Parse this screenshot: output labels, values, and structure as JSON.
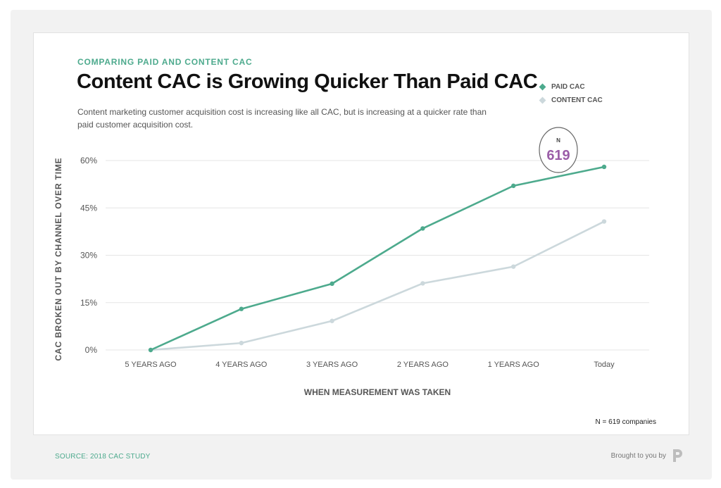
{
  "header": {
    "eyebrow": "COMPARING PAID AND CONTENT CAC",
    "title": "Content CAC is Growing Quicker Than Paid CAC",
    "subtitle": "Content marketing customer acquisition cost is increasing like all CAC, but is increasing at a quicker rate than paid customer acquisition cost."
  },
  "annotation": {
    "label": "N",
    "value": "619"
  },
  "note": "N = 619 companies",
  "footer": {
    "source": "SOURCE: 2018 CAC STUDY",
    "credit": "Brought to you by",
    "logo_icon": "brand-logo-icon"
  },
  "colors": {
    "paid": "#4daa8d",
    "content": "#ccd8dc",
    "annotation": "#9b5ea8",
    "grid": "#e6e6e6"
  },
  "chart_data": {
    "type": "line",
    "xlabel": "WHEN MEASUREMENT WAS TAKEN",
    "ylabel": "CAC BROKEN OUT BY CHANNEL OVER TIME",
    "categories": [
      "5 YEARS AGO",
      "4 YEARS AGO",
      "3 YEARS AGO",
      "2 YEARS AGO",
      "1 YEARS AGO",
      "Today"
    ],
    "ylim": [
      0,
      60
    ],
    "yticks": [
      0,
      15,
      30,
      45,
      60
    ],
    "ytick_labels": [
      "0%",
      "15%",
      "30%",
      "45%",
      "60%"
    ],
    "grid": true,
    "legend": "top-right",
    "series": [
      {
        "name": "PAID CAC",
        "color": "#4daa8d",
        "values": [
          0,
          13,
          21,
          38.5,
          52,
          58
        ]
      },
      {
        "name": "CONTENT CAC",
        "color": "#ccd8dc",
        "values": [
          0,
          2.2,
          9.2,
          21.1,
          26.4,
          40.7
        ]
      }
    ]
  }
}
